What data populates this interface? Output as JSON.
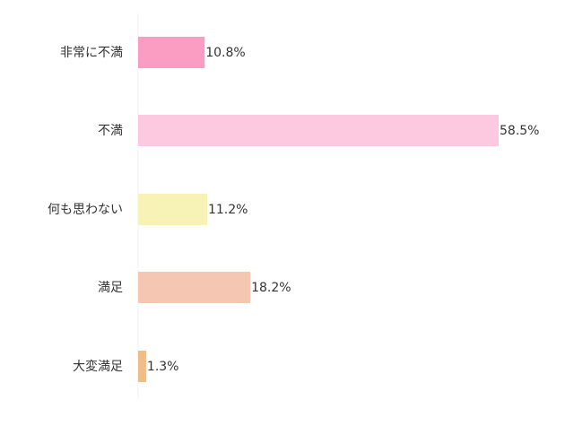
{
  "chart_data": {
    "type": "bar",
    "orientation": "horizontal",
    "categories": [
      "非常に不満",
      "不満",
      "何も思わない",
      "満足",
      "大変満足"
    ],
    "values": [
      10.8,
      58.5,
      11.2,
      18.2,
      1.3
    ],
    "value_labels": [
      "10.8%",
      "58.5%",
      "11.2%",
      "18.2%",
      "1.3%"
    ],
    "unit": "%",
    "xlim": [
      0,
      58.5
    ],
    "grid": false,
    "colors": [
      "#fb9dc3",
      "#fdc9e0",
      "#f7f2b6",
      "#f5c7b2",
      "#efbd88"
    ]
  }
}
